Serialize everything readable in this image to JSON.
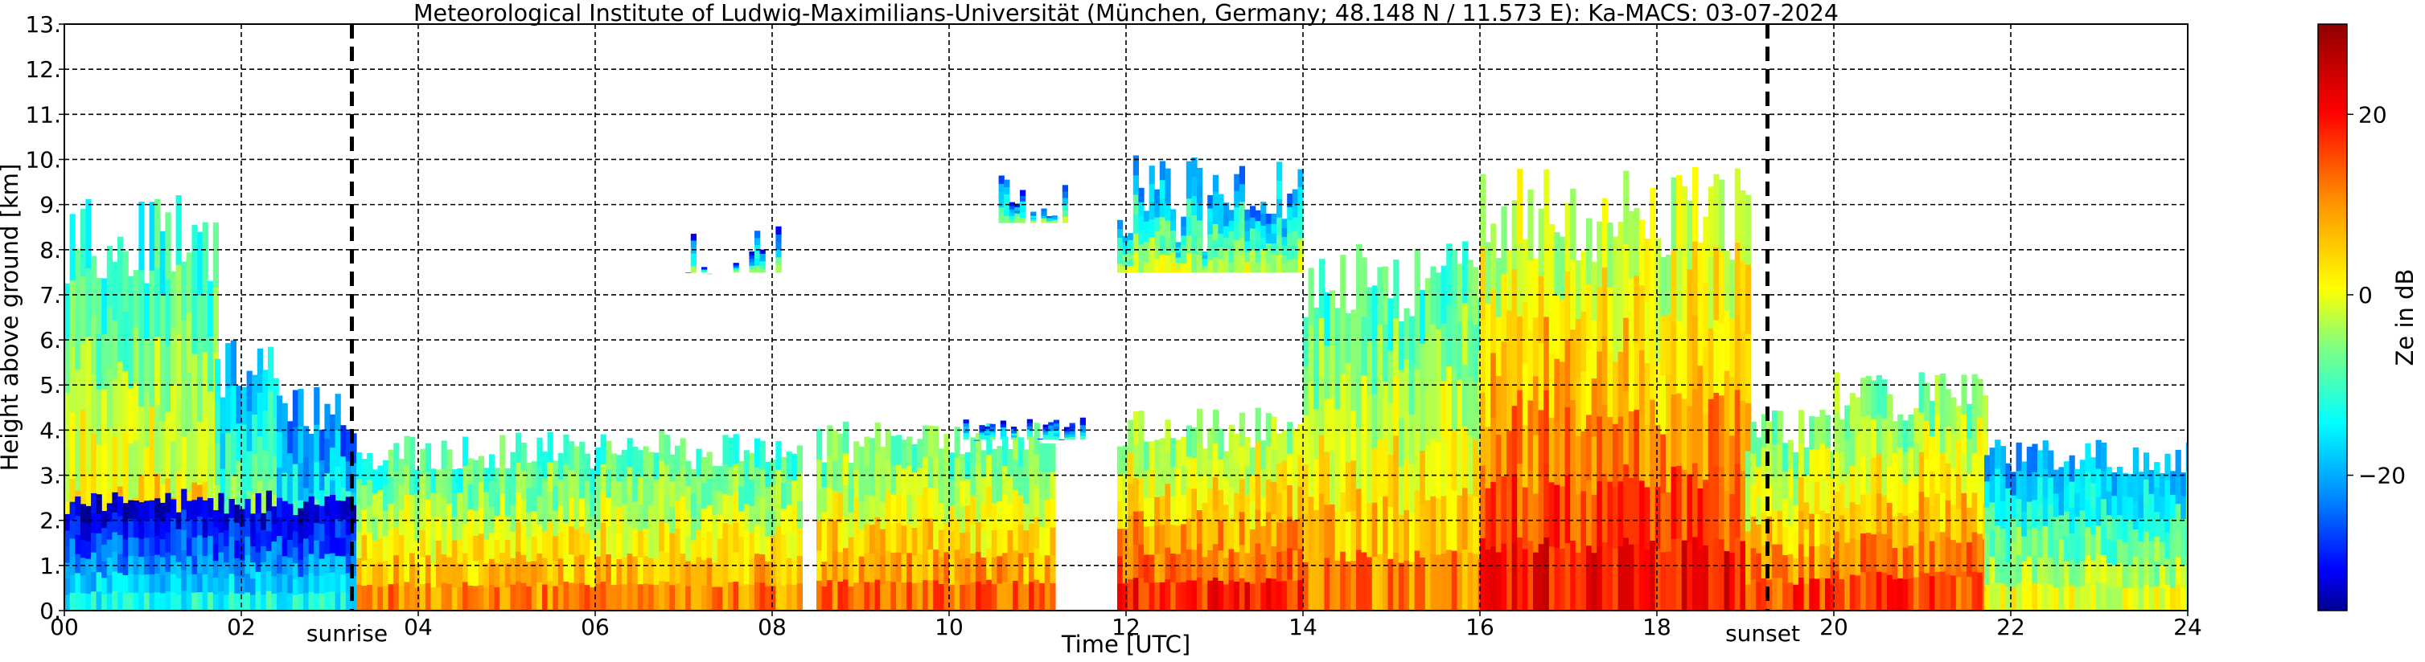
{
  "chart_data": {
    "type": "heatmap",
    "title": "Meteorological Institute of Ludwig-Maximilians-Universität (München, Germany; 48.148 N / 11.573 E):    Ka-MACS: 03-07-2024",
    "xlabel": "Time [UTC]",
    "ylabel": "Height above ground [km]",
    "xlim": [
      0,
      24
    ],
    "ylim": [
      0,
      13
    ],
    "x_ticks": [
      "00",
      "02",
      "04",
      "06",
      "08",
      "10",
      "12",
      "14",
      "16",
      "18",
      "20",
      "22",
      "24"
    ],
    "y_ticks": [
      "0.",
      "1.",
      "2.",
      "3.",
      "4.",
      "5.",
      "6.",
      "7.",
      "8.",
      "9.",
      "10.",
      "11.",
      "12.",
      "13."
    ],
    "grid": true,
    "colorbar": {
      "label": "Ze in dB",
      "range": [
        -35,
        30
      ],
      "ticks": [
        {
          "value": 20,
          "label": "20"
        },
        {
          "value": 0,
          "label": "0"
        },
        {
          "value": -20,
          "label": "−20"
        }
      ],
      "colors": [
        "#000090",
        "#0000ff",
        "#0090ff",
        "#00ffff",
        "#80ff80",
        "#ffff00",
        "#ff9000",
        "#ff0000",
        "#900000"
      ]
    },
    "markers": [
      {
        "label": "sunrise",
        "x": 3.25
      },
      {
        "label": "sunset",
        "x": 19.25
      }
    ],
    "regions": [
      {
        "t0": 0.0,
        "t1": 1.7,
        "h0": 0.0,
        "h1": 9.3,
        "ze": 4
      },
      {
        "t0": 1.7,
        "t1": 2.4,
        "h0": 0.0,
        "h1": 6.0,
        "ze": -2
      },
      {
        "t0": 2.4,
        "t1": 3.3,
        "h0": 0.0,
        "h1": 5.0,
        "ze": -8
      },
      {
        "t0": 0.0,
        "t1": 3.3,
        "h0": 0.0,
        "h1": 2.7,
        "ze": -18
      },
      {
        "t0": 3.3,
        "t1": 8.3,
        "h0": 0.0,
        "h1": 4.0,
        "ze": 6
      },
      {
        "t0": 6.9,
        "t1": 8.1,
        "h0": 7.5,
        "h1": 8.6,
        "ze": -12
      },
      {
        "t0": 8.5,
        "t1": 11.2,
        "h0": 0.0,
        "h1": 4.2,
        "ze": 8
      },
      {
        "t0": 10.1,
        "t1": 11.5,
        "h0": 3.8,
        "h1": 4.3,
        "ze": -14
      },
      {
        "t0": 10.5,
        "t1": 11.3,
        "h0": 8.6,
        "h1": 9.8,
        "ze": -10
      },
      {
        "t0": 11.9,
        "t1": 14.0,
        "h0": 0.0,
        "h1": 4.5,
        "ze": 12
      },
      {
        "t0": 11.9,
        "t1": 14.0,
        "h0": 7.5,
        "h1": 10.2,
        "ze": -6
      },
      {
        "t0": 14.0,
        "t1": 16.0,
        "h0": 0.0,
        "h1": 8.2,
        "ze": 6
      },
      {
        "t0": 16.0,
        "t1": 19.0,
        "h0": 0.0,
        "h1": 9.9,
        "ze": 14
      },
      {
        "t0": 19.0,
        "t1": 20.0,
        "h0": 0.0,
        "h1": 4.5,
        "ze": 10
      },
      {
        "t0": 20.0,
        "t1": 21.7,
        "h0": 0.0,
        "h1": 5.3,
        "ze": 10
      },
      {
        "t0": 21.7,
        "t1": 24.0,
        "h0": 0.0,
        "h1": 3.8,
        "ze": -4
      }
    ]
  }
}
